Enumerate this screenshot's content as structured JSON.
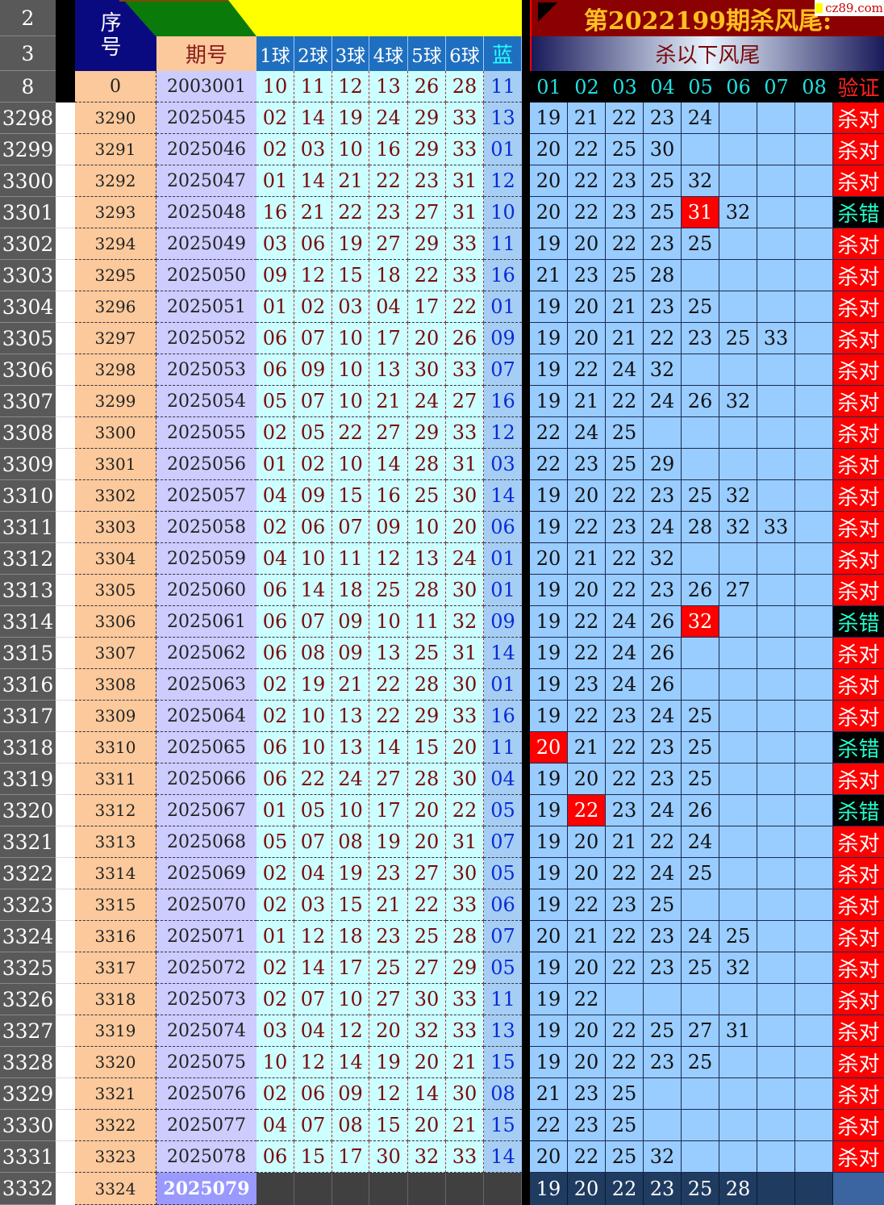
{
  "header": {
    "row_labels": [
      "2",
      "3",
      "8"
    ],
    "seq_label": "序号",
    "period_label": "期号",
    "ball_labels": [
      "1球",
      "2球",
      "3球",
      "4球",
      "5球",
      "6球"
    ],
    "blue_label": "蓝",
    "title": "第2022199期杀风尾:",
    "subtitle": "杀以下风尾",
    "kill_cols": [
      "01",
      "02",
      "03",
      "04",
      "05",
      "06",
      "07",
      "08"
    ],
    "verify_label": "验证",
    "watermark": "cz89.com",
    "first_row": {
      "seq": "0",
      "period": "2003001",
      "balls": [
        "10",
        "11",
        "12",
        "13",
        "26",
        "28"
      ],
      "blue": "11"
    }
  },
  "colors": {
    "hit": "#ff0000",
    "verify_ok": "#ff0000",
    "verify_bad": "#000000",
    "kill_cell": "#99ccff"
  },
  "rows": [
    {
      "r": "3298",
      "seq": "3290",
      "period": "2025045",
      "balls": [
        "02",
        "14",
        "19",
        "24",
        "29",
        "33"
      ],
      "blue": "13",
      "kill": [
        "19",
        "21",
        "22",
        "23",
        "24"
      ],
      "hit": -1,
      "verify": "杀对"
    },
    {
      "r": "3299",
      "seq": "3291",
      "period": "2025046",
      "balls": [
        "02",
        "03",
        "10",
        "16",
        "29",
        "33"
      ],
      "blue": "01",
      "kill": [
        "20",
        "22",
        "25",
        "30"
      ],
      "hit": -1,
      "verify": "杀对"
    },
    {
      "r": "3300",
      "seq": "3292",
      "period": "2025047",
      "balls": [
        "01",
        "14",
        "21",
        "22",
        "23",
        "31"
      ],
      "blue": "12",
      "kill": [
        "20",
        "22",
        "23",
        "25",
        "32"
      ],
      "hit": -1,
      "verify": "杀对"
    },
    {
      "r": "3301",
      "seq": "3293",
      "period": "2025048",
      "balls": [
        "16",
        "21",
        "22",
        "23",
        "27",
        "31"
      ],
      "blue": "10",
      "kill": [
        "20",
        "22",
        "23",
        "25",
        "31",
        "32"
      ],
      "hit": 4,
      "verify": "杀错"
    },
    {
      "r": "3302",
      "seq": "3294",
      "period": "2025049",
      "balls": [
        "03",
        "06",
        "19",
        "27",
        "29",
        "33"
      ],
      "blue": "11",
      "kill": [
        "19",
        "20",
        "22",
        "23",
        "25"
      ],
      "hit": -1,
      "verify": "杀对"
    },
    {
      "r": "3303",
      "seq": "3295",
      "period": "2025050",
      "balls": [
        "09",
        "12",
        "15",
        "18",
        "22",
        "33"
      ],
      "blue": "16",
      "kill": [
        "21",
        "23",
        "25",
        "28"
      ],
      "hit": -1,
      "verify": "杀对"
    },
    {
      "r": "3304",
      "seq": "3296",
      "period": "2025051",
      "balls": [
        "01",
        "02",
        "03",
        "04",
        "17",
        "22"
      ],
      "blue": "01",
      "kill": [
        "19",
        "20",
        "21",
        "23",
        "25"
      ],
      "hit": -1,
      "verify": "杀对"
    },
    {
      "r": "3305",
      "seq": "3297",
      "period": "2025052",
      "balls": [
        "06",
        "07",
        "10",
        "17",
        "20",
        "26"
      ],
      "blue": "09",
      "kill": [
        "19",
        "20",
        "21",
        "22",
        "23",
        "25",
        "33"
      ],
      "hit": -1,
      "verify": "杀对"
    },
    {
      "r": "3306",
      "seq": "3298",
      "period": "2025053",
      "balls": [
        "06",
        "09",
        "10",
        "13",
        "30",
        "33"
      ],
      "blue": "07",
      "kill": [
        "19",
        "22",
        "24",
        "32"
      ],
      "hit": -1,
      "verify": "杀对"
    },
    {
      "r": "3307",
      "seq": "3299",
      "period": "2025054",
      "balls": [
        "05",
        "07",
        "10",
        "21",
        "24",
        "27"
      ],
      "blue": "16",
      "kill": [
        "19",
        "21",
        "22",
        "24",
        "26",
        "32"
      ],
      "hit": -1,
      "verify": "杀对"
    },
    {
      "r": "3308",
      "seq": "3300",
      "period": "2025055",
      "balls": [
        "02",
        "05",
        "22",
        "27",
        "29",
        "33"
      ],
      "blue": "12",
      "kill": [
        "22",
        "24",
        "25"
      ],
      "hit": -1,
      "verify": "杀对"
    },
    {
      "r": "3309",
      "seq": "3301",
      "period": "2025056",
      "balls": [
        "01",
        "02",
        "10",
        "14",
        "28",
        "31"
      ],
      "blue": "03",
      "kill": [
        "22",
        "23",
        "25",
        "29"
      ],
      "hit": -1,
      "verify": "杀对"
    },
    {
      "r": "3310",
      "seq": "3302",
      "period": "2025057",
      "balls": [
        "04",
        "09",
        "15",
        "16",
        "25",
        "30"
      ],
      "blue": "14",
      "kill": [
        "19",
        "20",
        "22",
        "23",
        "25",
        "32"
      ],
      "hit": -1,
      "verify": "杀对"
    },
    {
      "r": "3311",
      "seq": "3303",
      "period": "2025058",
      "balls": [
        "02",
        "06",
        "07",
        "09",
        "10",
        "20"
      ],
      "blue": "06",
      "kill": [
        "19",
        "22",
        "23",
        "24",
        "28",
        "32",
        "33"
      ],
      "hit": -1,
      "verify": "杀对"
    },
    {
      "r": "3312",
      "seq": "3304",
      "period": "2025059",
      "balls": [
        "04",
        "10",
        "11",
        "12",
        "13",
        "24"
      ],
      "blue": "01",
      "kill": [
        "20",
        "21",
        "22",
        "32"
      ],
      "hit": -1,
      "verify": "杀对"
    },
    {
      "r": "3313",
      "seq": "3305",
      "period": "2025060",
      "balls": [
        "06",
        "14",
        "18",
        "25",
        "28",
        "30"
      ],
      "blue": "01",
      "kill": [
        "19",
        "20",
        "22",
        "23",
        "26",
        "27"
      ],
      "hit": -1,
      "verify": "杀对"
    },
    {
      "r": "3314",
      "seq": "3306",
      "period": "2025061",
      "balls": [
        "06",
        "07",
        "09",
        "10",
        "11",
        "32"
      ],
      "blue": "09",
      "kill": [
        "19",
        "22",
        "24",
        "26",
        "32"
      ],
      "hit": 4,
      "verify": "杀错"
    },
    {
      "r": "3315",
      "seq": "3307",
      "period": "2025062",
      "balls": [
        "06",
        "08",
        "09",
        "13",
        "25",
        "31"
      ],
      "blue": "14",
      "kill": [
        "19",
        "22",
        "24",
        "26"
      ],
      "hit": -1,
      "verify": "杀对"
    },
    {
      "r": "3316",
      "seq": "3308",
      "period": "2025063",
      "balls": [
        "02",
        "19",
        "21",
        "22",
        "28",
        "30"
      ],
      "blue": "01",
      "kill": [
        "19",
        "23",
        "24",
        "26"
      ],
      "hit": -1,
      "verify": "杀对"
    },
    {
      "r": "3317",
      "seq": "3309",
      "period": "2025064",
      "balls": [
        "02",
        "10",
        "13",
        "22",
        "29",
        "33"
      ],
      "blue": "16",
      "kill": [
        "19",
        "22",
        "23",
        "24",
        "25"
      ],
      "hit": -1,
      "verify": "杀对"
    },
    {
      "r": "3318",
      "seq": "3310",
      "period": "2025065",
      "balls": [
        "06",
        "10",
        "13",
        "14",
        "15",
        "20"
      ],
      "blue": "11",
      "kill": [
        "20",
        "21",
        "22",
        "23",
        "25"
      ],
      "hit": 0,
      "verify": "杀错"
    },
    {
      "r": "3319",
      "seq": "3311",
      "period": "2025066",
      "balls": [
        "06",
        "22",
        "24",
        "27",
        "28",
        "30"
      ],
      "blue": "04",
      "kill": [
        "19",
        "20",
        "22",
        "23",
        "25"
      ],
      "hit": -1,
      "verify": "杀对"
    },
    {
      "r": "3320",
      "seq": "3312",
      "period": "2025067",
      "balls": [
        "01",
        "05",
        "10",
        "17",
        "20",
        "22"
      ],
      "blue": "05",
      "kill": [
        "19",
        "22",
        "23",
        "24",
        "26"
      ],
      "hit": 1,
      "verify": "杀错"
    },
    {
      "r": "3321",
      "seq": "3313",
      "period": "2025068",
      "balls": [
        "05",
        "07",
        "08",
        "19",
        "20",
        "31"
      ],
      "blue": "07",
      "kill": [
        "19",
        "20",
        "21",
        "22",
        "24"
      ],
      "hit": -1,
      "verify": "杀对"
    },
    {
      "r": "3322",
      "seq": "3314",
      "period": "2025069",
      "balls": [
        "02",
        "04",
        "19",
        "23",
        "27",
        "30"
      ],
      "blue": "05",
      "kill": [
        "19",
        "20",
        "22",
        "24",
        "25"
      ],
      "hit": -1,
      "verify": "杀对"
    },
    {
      "r": "3323",
      "seq": "3315",
      "period": "2025070",
      "balls": [
        "02",
        "03",
        "15",
        "21",
        "22",
        "33"
      ],
      "blue": "06",
      "kill": [
        "19",
        "22",
        "23",
        "25"
      ],
      "hit": -1,
      "verify": "杀对"
    },
    {
      "r": "3324",
      "seq": "3316",
      "period": "2025071",
      "balls": [
        "01",
        "12",
        "18",
        "23",
        "25",
        "28"
      ],
      "blue": "07",
      "kill": [
        "20",
        "21",
        "22",
        "23",
        "24",
        "25"
      ],
      "hit": -1,
      "verify": "杀对"
    },
    {
      "r": "3325",
      "seq": "3317",
      "period": "2025072",
      "balls": [
        "02",
        "14",
        "17",
        "25",
        "27",
        "29"
      ],
      "blue": "05",
      "kill": [
        "19",
        "20",
        "22",
        "23",
        "25",
        "32"
      ],
      "hit": -1,
      "verify": "杀对"
    },
    {
      "r": "3326",
      "seq": "3318",
      "period": "2025073",
      "balls": [
        "02",
        "07",
        "10",
        "27",
        "30",
        "33"
      ],
      "blue": "11",
      "kill": [
        "19",
        "22"
      ],
      "hit": -1,
      "verify": "杀对"
    },
    {
      "r": "3327",
      "seq": "3319",
      "period": "2025074",
      "balls": [
        "03",
        "04",
        "12",
        "20",
        "32",
        "33"
      ],
      "blue": "13",
      "kill": [
        "19",
        "20",
        "22",
        "25",
        "27",
        "31"
      ],
      "hit": -1,
      "verify": "杀对"
    },
    {
      "r": "3328",
      "seq": "3320",
      "period": "2025075",
      "balls": [
        "10",
        "12",
        "14",
        "19",
        "20",
        "21"
      ],
      "blue": "15",
      "kill": [
        "19",
        "20",
        "22",
        "23",
        "25"
      ],
      "hit": -1,
      "verify": "杀对"
    },
    {
      "r": "3329",
      "seq": "3321",
      "period": "2025076",
      "balls": [
        "02",
        "06",
        "09",
        "12",
        "14",
        "30"
      ],
      "blue": "08",
      "kill": [
        "21",
        "23",
        "25"
      ],
      "hit": -1,
      "verify": "杀对"
    },
    {
      "r": "3330",
      "seq": "3322",
      "period": "2025077",
      "balls": [
        "04",
        "07",
        "08",
        "15",
        "20",
        "21"
      ],
      "blue": "15",
      "kill": [
        "22",
        "23",
        "25"
      ],
      "hit": -1,
      "verify": "杀对"
    },
    {
      "r": "3331",
      "seq": "3323",
      "period": "2025078",
      "balls": [
        "06",
        "15",
        "17",
        "30",
        "32",
        "33"
      ],
      "blue": "14",
      "kill": [
        "20",
        "22",
        "25",
        "32"
      ],
      "hit": -1,
      "verify": "杀对"
    }
  ],
  "current": {
    "r": "3332",
    "seq": "3324",
    "period": "2025079",
    "kill": [
      "19",
      "20",
      "22",
      "23",
      "25",
      "28"
    ]
  }
}
